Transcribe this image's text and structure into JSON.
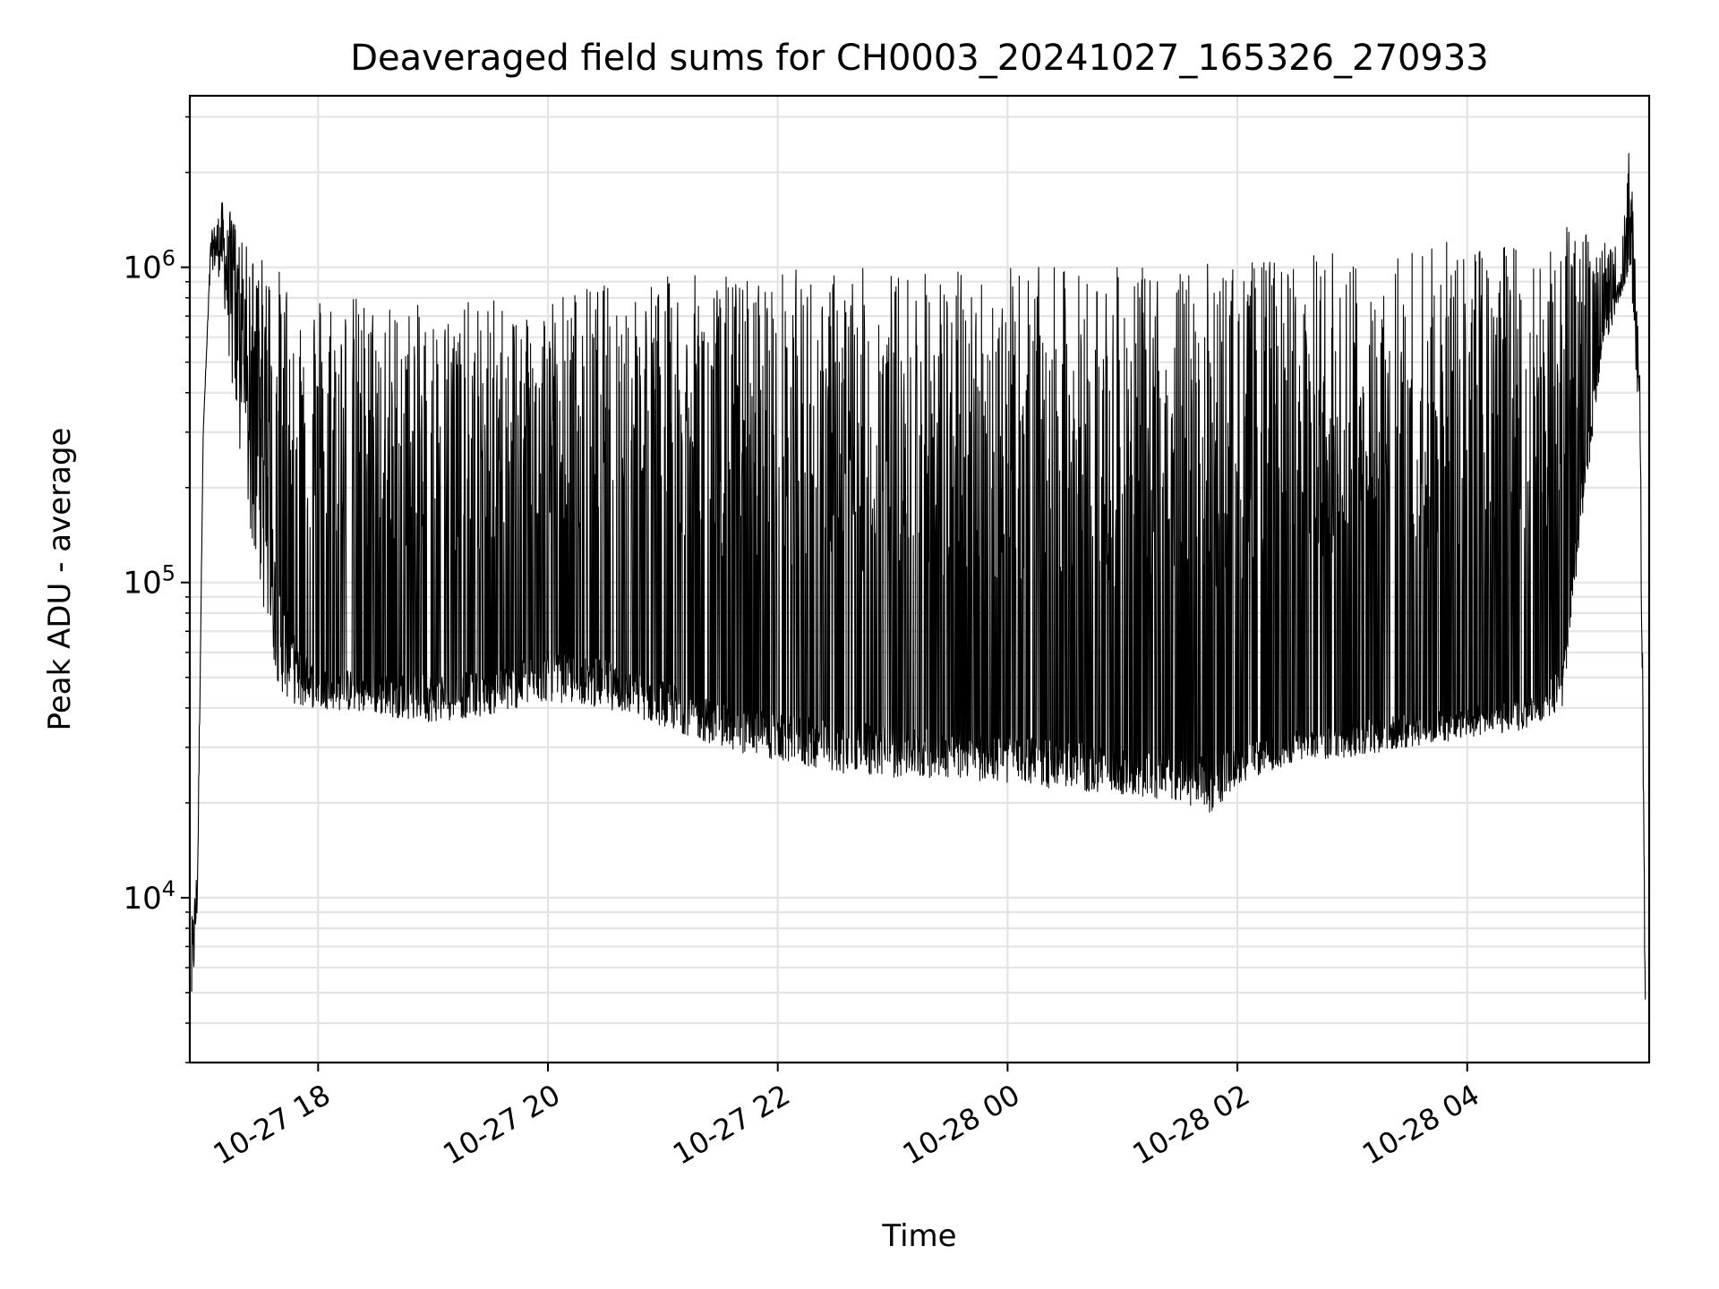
{
  "chart_data": {
    "type": "line",
    "title": "Deaveraged field sums for CH0003_20241027_165326_270933",
    "xlabel": "Time",
    "ylabel": "Peak ADU - average",
    "y_scale": "log",
    "ylim": [
      3000,
      3500000
    ],
    "xlim": [
      "2024-10-27 16:53",
      "2024-10-28 05:35"
    ],
    "grid": true,
    "x_ticks": [
      {
        "label": "10-27 18",
        "value": "2024-10-27 18:00"
      },
      {
        "label": "10-27 20",
        "value": "2024-10-27 20:00"
      },
      {
        "label": "10-27 22",
        "value": "2024-10-27 22:00"
      },
      {
        "label": "10-28 00",
        "value": "2024-10-28 00:00"
      },
      {
        "label": "10-28 02",
        "value": "2024-10-28 02:00"
      },
      {
        "label": "10-28 04",
        "value": "2024-10-28 04:00"
      }
    ],
    "y_ticks": [
      {
        "base": "10",
        "exp": "4",
        "value": 10000
      },
      {
        "base": "10",
        "exp": "5",
        "value": 100000
      },
      {
        "base": "10",
        "exp": "6",
        "value": 1000000
      }
    ],
    "series": [
      {
        "color": "#000000",
        "x": [
          "2024-10-27 16:54",
          "2024-10-27 16:57",
          "2024-10-27 17:00",
          "2024-10-27 17:04",
          "2024-10-27 17:10",
          "2024-10-27 17:15",
          "2024-10-27 17:20",
          "2024-10-27 17:30",
          "2024-10-27 17:40",
          "2024-10-27 17:50",
          "2024-10-27 18:00",
          "2024-10-27 18:30",
          "2024-10-27 19:00",
          "2024-10-27 19:30",
          "2024-10-27 20:00",
          "2024-10-27 20:30",
          "2024-10-27 21:00",
          "2024-10-27 21:30",
          "2024-10-27 22:00",
          "2024-10-27 22:30",
          "2024-10-27 23:00",
          "2024-10-27 23:30",
          "2024-10-28 00:00",
          "2024-10-28 00:30",
          "2024-10-28 01:00",
          "2024-10-28 01:30",
          "2024-10-28 01:45",
          "2024-10-28 02:00",
          "2024-10-28 02:30",
          "2024-10-28 03:00",
          "2024-10-28 03:30",
          "2024-10-28 04:00",
          "2024-10-28 04:30",
          "2024-10-28 04:50",
          "2024-10-28 05:00",
          "2024-10-28 05:10",
          "2024-10-28 05:20",
          "2024-10-28 05:25",
          "2024-10-28 05:30",
          "2024-10-28 05:33"
        ],
        "y_baseline": [
          7000,
          12000,
          300000,
          1200000,
          1400000,
          900000,
          600000,
          250000,
          80000,
          55000,
          50000,
          48000,
          47000,
          48000,
          55000,
          52000,
          45000,
          38000,
          35000,
          33000,
          32000,
          31000,
          30000,
          29000,
          27000,
          26000,
          25000,
          28000,
          32000,
          34000,
          36000,
          38000,
          40000,
          50000,
          200000,
          600000,
          900000,
          1100000,
          500000,
          7000
        ],
        "y_spike_max": [
          7000,
          12000,
          300000,
          1800000,
          1600000,
          1500000,
          1200000,
          1100000,
          1000000,
          950000,
          900000,
          800000,
          750000,
          800000,
          850000,
          900000,
          950000,
          950000,
          1000000,
          1000000,
          1000000,
          1000000,
          1000000,
          1000000,
          1000000,
          1000000,
          1050000,
          1050000,
          1100000,
          1150000,
          1200000,
          1200000,
          1250000,
          1350000,
          1300000,
          1250000,
          1200000,
          2600000,
          500000,
          7000
        ],
        "y_min": [
          4000,
          9000,
          300000,
          1000000,
          900000,
          400000,
          200000,
          90000,
          45000,
          40000,
          40000,
          38000,
          36000,
          38000,
          42000,
          40000,
          35000,
          30000,
          27000,
          25000,
          24000,
          24000,
          23000,
          22000,
          21000,
          20000,
          18000,
          23000,
          27000,
          28000,
          30000,
          32000,
          34000,
          40000,
          150000,
          500000,
          800000,
          1000000,
          300000,
          4000
        ]
      }
    ]
  }
}
